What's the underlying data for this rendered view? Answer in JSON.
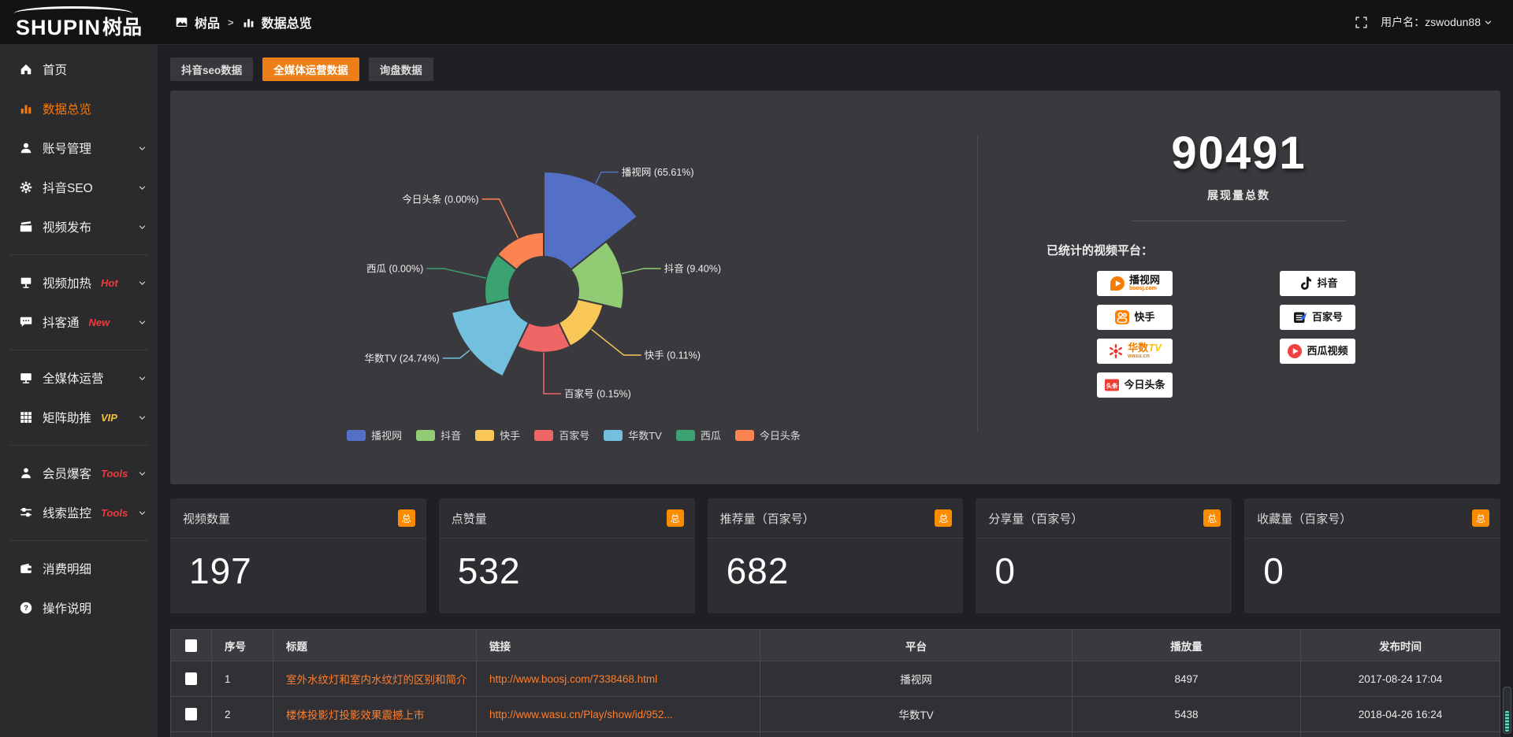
{
  "topbar": {
    "logo_en": "SHUPIN",
    "logo_cn": "树品",
    "breadcrumb": [
      {
        "label": "树品"
      },
      {
        "label": "数据总览"
      }
    ],
    "user_label": "用户名：zswodun88"
  },
  "sidebar": {
    "items": [
      {
        "id": "home",
        "label": "首页",
        "icon": "home-icon",
        "active": false,
        "chevron": false
      },
      {
        "id": "data-overview",
        "label": "数据总览",
        "icon": "bar-chart-icon",
        "active": true,
        "chevron": false
      },
      {
        "id": "account-manage",
        "label": "账号管理",
        "icon": "user-icon",
        "chevron": true
      },
      {
        "id": "douyin-seo",
        "label": "抖音SEO",
        "icon": "gear-icon",
        "chevron": true
      },
      {
        "id": "video-publish",
        "label": "视频发布",
        "icon": "video-publish-icon",
        "chevron": true,
        "divider_after": true
      },
      {
        "id": "video-heat",
        "label": "视频加热",
        "icon": "screen-icon",
        "badge": "Hot",
        "badge_color": "#ee3b3b",
        "chevron": true
      },
      {
        "id": "douketong",
        "label": "抖客通",
        "icon": "chat-icon",
        "badge": "New",
        "badge_color": "#ee3b3b",
        "chevron": true,
        "divider_after": true
      },
      {
        "id": "media-ops",
        "label": "全媒体运营",
        "icon": "monitor-icon",
        "chevron": true
      },
      {
        "id": "matrix-boost",
        "label": "矩阵助推",
        "icon": "grid-icon",
        "badge": "VIP",
        "badge_color": "#f5c242",
        "chevron": true,
        "divider_after": true
      },
      {
        "id": "member-baoke",
        "label": "会员爆客",
        "icon": "person-icon",
        "badge": "Tools",
        "badge_color": "#ee3b3b",
        "chevron": true
      },
      {
        "id": "clue-monitor",
        "label": "线索监控",
        "icon": "sliders-icon",
        "badge": "Tools",
        "badge_color": "#ee3b3b",
        "chevron": true,
        "divider_after": true
      },
      {
        "id": "consumption-detail",
        "label": "消费明细",
        "icon": "wallet-icon",
        "chevron": false
      },
      {
        "id": "instructions",
        "label": "操作说明",
        "icon": "help-icon",
        "chevron": false
      }
    ]
  },
  "tabs": [
    {
      "label": "抖音seo数据",
      "active": false
    },
    {
      "label": "全媒体运营数据",
      "active": true
    },
    {
      "label": "询盘数据",
      "active": false
    }
  ],
  "chart_data": {
    "type": "pie",
    "variant": "nightingale-rose",
    "unit": "%",
    "angle": "equal-per-slice",
    "radius_encodes": "value",
    "legend_position": "bottom",
    "slices": [
      {
        "name": "播视网",
        "value": 65.61,
        "label": "播视网 (65.61%)",
        "color": "#5470c6"
      },
      {
        "name": "抖音",
        "value": 9.4,
        "label": "抖音 (9.40%)",
        "color": "#91cc75"
      },
      {
        "name": "快手",
        "value": 0.11,
        "label": "快手 (0.11%)",
        "color": "#fac858"
      },
      {
        "name": "百家号",
        "value": 0.15,
        "label": "百家号 (0.15%)",
        "color": "#ee6666"
      },
      {
        "name": "华数TV",
        "value": 24.74,
        "label": "华数TV (24.74%)",
        "color": "#73c0de"
      },
      {
        "name": "西瓜",
        "value": 0.0,
        "label": "西瓜 (0.00%)",
        "color": "#3ba272"
      },
      {
        "name": "今日头条",
        "value": 0.0,
        "label": "今日头条 (0.00%)",
        "color": "#fc8452"
      }
    ],
    "legend": [
      "播视网",
      "抖音",
      "快手",
      "百家号",
      "华数TV",
      "西瓜",
      "今日头条"
    ]
  },
  "summary": {
    "total": "90491",
    "total_label": "展现量总数",
    "platforms_label": "已统计的视频平台：",
    "platform_columns": [
      [
        {
          "logo": "boosj-logo",
          "name": "播视网",
          "sub": "boosj.com",
          "sub_color": "#f26f00"
        },
        {
          "logo": "kuaishou-logo",
          "name": "快手"
        },
        {
          "logo": "wasu-logo",
          "name_parts": [
            {
              "text": "华数",
              "color": "#ef7e00"
            },
            {
              "text": "TV",
              "color": "#fdc500",
              "italic": true
            }
          ],
          "sub": "wasu.cn",
          "sub_color": "#ef7e00"
        },
        {
          "logo": "toutiao-logo",
          "name": "今日头条"
        }
      ],
      [
        {
          "logo": "douyin-logo",
          "name": "抖音"
        },
        {
          "logo": "baijiahao-logo",
          "name": "百家号"
        },
        {
          "logo": "xigua-logo",
          "name": "西瓜视频"
        }
      ]
    ]
  },
  "stat_cards": [
    {
      "title": "视频数量",
      "badge": "总",
      "value": "197"
    },
    {
      "title": "点赞量",
      "badge": "总",
      "value": "532"
    },
    {
      "title": "推荐量（百家号）",
      "badge": "总",
      "value": "682"
    },
    {
      "title": "分享量（百家号）",
      "badge": "总",
      "value": "0"
    },
    {
      "title": "收藏量（百家号）",
      "badge": "总",
      "value": "0"
    }
  ],
  "table": {
    "columns": [
      "",
      "序号",
      "标题",
      "链接",
      "平台",
      "播放量",
      "发布时间"
    ],
    "rows": [
      {
        "index": "1",
        "title": "室外水纹灯和室内水纹灯的区别和简介",
        "link": "http://www.boosj.com/7338468.html",
        "platform": "播视网",
        "plays": "8497",
        "time": "2017-08-24 17:04"
      },
      {
        "index": "2",
        "title": "楼体投影灯投影效果震撼上市",
        "link": "http://www.wasu.cn/Play/show/id/952...",
        "platform": "华数TV",
        "plays": "5438",
        "time": "2018-04-26 16:24"
      }
    ]
  }
}
